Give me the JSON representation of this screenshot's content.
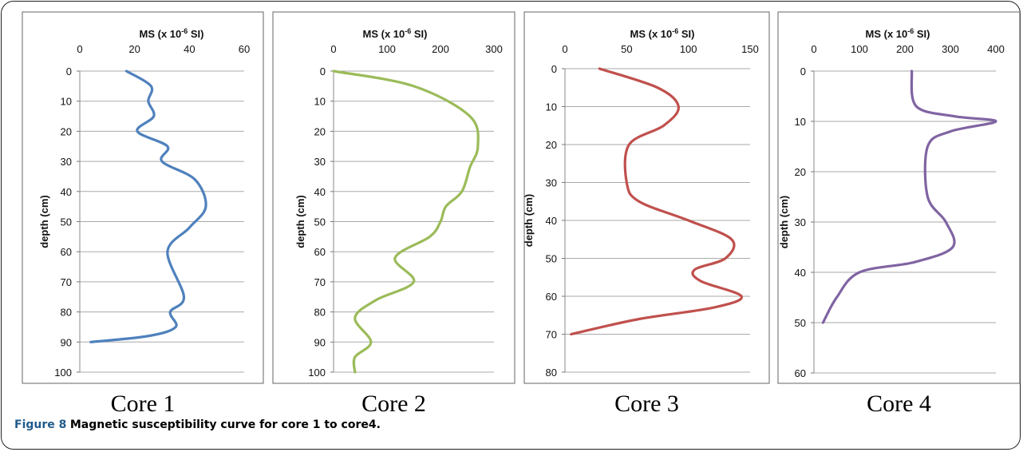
{
  "figure": {
    "label": "Figure 8",
    "text": "Magnetic susceptibility curve for core 1 to core4."
  },
  "chart_data": [
    {
      "type": "line",
      "panel_label": "Core 1",
      "xlabel": "MS (x 10-6 SI)",
      "ylabel": "depth (cm)",
      "xlim": [
        0,
        60
      ],
      "xticks": [
        0,
        20,
        40,
        60
      ],
      "ylim": [
        0,
        100
      ],
      "yticks": [
        0,
        10,
        20,
        30,
        40,
        50,
        60,
        70,
        80,
        90,
        100
      ],
      "y_inverted": true,
      "grid": "horizontal",
      "color": "#4f81bd",
      "x": [
        17,
        26,
        25,
        27,
        21,
        32,
        30,
        42,
        46,
        40,
        32,
        38,
        33,
        35,
        25,
        4
      ],
      "y": [
        0,
        5,
        10,
        15,
        20,
        25,
        30,
        36,
        45,
        52,
        60,
        75,
        80,
        85,
        88,
        90
      ]
    },
    {
      "type": "line",
      "panel_label": "Core 2",
      "xlabel": "MS (x 10-6 SI)",
      "ylabel": "depth (cm)",
      "xlim": [
        0,
        300
      ],
      "xticks": [
        0,
        100,
        200,
        300
      ],
      "ylim": [
        0,
        100
      ],
      "yticks": [
        0,
        10,
        20,
        30,
        40,
        50,
        60,
        70,
        80,
        90,
        100
      ],
      "y_inverted": true,
      "grid": "horizontal",
      "color": "#9bbb59",
      "x": [
        0,
        150,
        255,
        270,
        255,
        240,
        210,
        200,
        180,
        115,
        150,
        80,
        40,
        70,
        40,
        40
      ],
      "y": [
        0,
        5,
        15,
        25,
        32,
        40,
        45,
        50,
        55,
        62,
        70,
        76,
        82,
        90,
        95,
        100
      ]
    },
    {
      "type": "line",
      "panel_label": "Core 3",
      "xlabel": "MS (x 10-6 SI)",
      "ylabel": "depth (cm)",
      "xlim": [
        0,
        150
      ],
      "xticks": [
        0,
        50,
        100,
        150
      ],
      "ylim": [
        0,
        80
      ],
      "yticks": [
        0,
        10,
        20,
        30,
        40,
        50,
        60,
        70,
        80
      ],
      "y_inverted": true,
      "grid": "horizontal",
      "color": "#c0504d",
      "x": [
        28,
        75,
        92,
        80,
        52,
        50,
        60,
        100,
        135,
        130,
        105,
        110,
        143,
        120,
        60,
        5
      ],
      "y": [
        0,
        5,
        10,
        15,
        20,
        30,
        35,
        40,
        45,
        50,
        53,
        56,
        60,
        63,
        66,
        70
      ]
    },
    {
      "type": "line",
      "panel_label": "Core 4",
      "xlabel": "MS (x 10-6 SI)",
      "ylabel": "depth (cm)",
      "xlim": [
        0,
        400
      ],
      "xticks": [
        0,
        100,
        200,
        300,
        400
      ],
      "ylim": [
        0,
        60
      ],
      "yticks": [
        0,
        10,
        20,
        30,
        40,
        50,
        60
      ],
      "y_inverted": true,
      "grid": "horizontal",
      "color": "#8064a2",
      "x": [
        215,
        225,
        310,
        400,
        300,
        250,
        250,
        290,
        305,
        220,
        100,
        50,
        20
      ],
      "y": [
        0,
        7,
        9,
        10,
        12,
        15,
        25,
        30,
        35,
        38,
        40,
        45,
        50
      ]
    }
  ]
}
